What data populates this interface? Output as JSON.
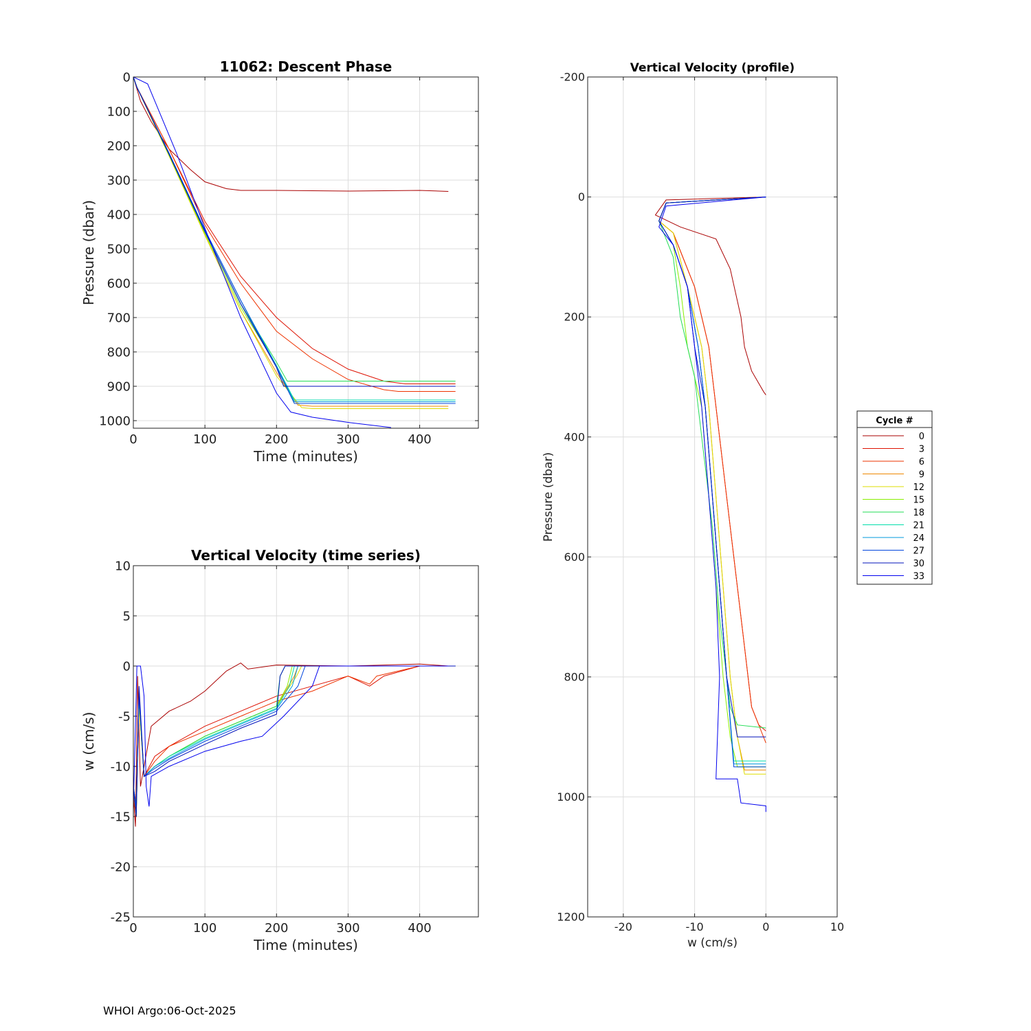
{
  "footer": "WHOI Argo:06-Oct-2025",
  "legend": {
    "title": "Cycle #",
    "entries": [
      "0",
      "3",
      "6",
      "9",
      "12",
      "15",
      "18",
      "21",
      "24",
      "27",
      "30",
      "33"
    ],
    "colors": [
      "#aa0000",
      "#dd1100",
      "#ee3300",
      "#ee8800",
      "#dddd00",
      "#88ee00",
      "#22dd55",
      "#00ddaa",
      "#0099dd",
      "#0044dd",
      "#0011bb",
      "#0000ee"
    ]
  },
  "chart_data": [
    {
      "id": "descent",
      "type": "line",
      "title": "11062: Descent Phase",
      "xlabel": "Time (minutes)",
      "ylabel": "Pressure (dbar)",
      "xlim": [
        0,
        482
      ],
      "ylim": [
        1022,
        0
      ],
      "xticks": [
        0,
        100,
        200,
        300,
        400
      ],
      "yticks": [
        0,
        100,
        200,
        300,
        400,
        500,
        600,
        700,
        800,
        900,
        1000
      ],
      "grid": true,
      "series": [
        {
          "name": "0",
          "x": [
            0,
            10,
            25,
            50,
            80,
            100,
            130,
            150,
            200,
            300,
            400,
            440
          ],
          "y": [
            0,
            70,
            130,
            210,
            270,
            305,
            325,
            330,
            330,
            332,
            330,
            333
          ]
        },
        {
          "name": "3",
          "x": [
            0,
            5,
            50,
            100,
            150,
            200,
            250,
            300,
            350,
            380,
            450
          ],
          "y": [
            0,
            30,
            210,
            420,
            580,
            700,
            790,
            850,
            885,
            893,
            893
          ]
        },
        {
          "name": "6",
          "x": [
            0,
            5,
            50,
            100,
            150,
            200,
            250,
            300,
            350,
            370,
            450
          ],
          "y": [
            0,
            30,
            210,
            430,
            600,
            740,
            820,
            880,
            910,
            915,
            915
          ]
        },
        {
          "name": "9",
          "x": [
            0,
            5,
            50,
            100,
            150,
            200,
            230,
            250,
            440
          ],
          "y": [
            0,
            30,
            230,
            460,
            680,
            860,
            955,
            958,
            958
          ]
        },
        {
          "name": "12",
          "x": [
            0,
            5,
            50,
            100,
            150,
            200,
            235,
            250,
            440
          ],
          "y": [
            0,
            30,
            230,
            460,
            680,
            870,
            962,
            965,
            965
          ]
        },
        {
          "name": "15",
          "x": [
            0,
            5,
            50,
            100,
            150,
            200,
            225,
            450
          ],
          "y": [
            0,
            30,
            228,
            455,
            670,
            840,
            950,
            950
          ]
        },
        {
          "name": "18",
          "x": [
            0,
            5,
            50,
            100,
            150,
            200,
            215,
            450
          ],
          "y": [
            0,
            30,
            225,
            450,
            660,
            830,
            885,
            885
          ]
        },
        {
          "name": "21",
          "x": [
            0,
            5,
            50,
            100,
            150,
            200,
            225,
            450
          ],
          "y": [
            0,
            30,
            225,
            450,
            660,
            840,
            940,
            940
          ]
        },
        {
          "name": "24",
          "x": [
            0,
            5,
            50,
            100,
            150,
            200,
            225,
            450
          ],
          "y": [
            0,
            30,
            222,
            445,
            650,
            840,
            945,
            945
          ]
        },
        {
          "name": "27",
          "x": [
            0,
            5,
            50,
            100,
            150,
            200,
            225,
            450
          ],
          "y": [
            0,
            30,
            222,
            445,
            650,
            845,
            950,
            950
          ]
        },
        {
          "name": "30",
          "x": [
            0,
            5,
            50,
            100,
            150,
            200,
            210,
            450
          ],
          "y": [
            0,
            30,
            225,
            450,
            660,
            845,
            900,
            900
          ]
        },
        {
          "name": "33",
          "x": [
            0,
            20,
            60,
            100,
            150,
            200,
            220,
            250,
            300,
            360
          ],
          "y": [
            0,
            20,
            220,
            440,
            700,
            920,
            975,
            990,
            1005,
            1020
          ]
        }
      ]
    },
    {
      "id": "velocity-time",
      "type": "line",
      "title": "Vertical Velocity (time series)",
      "xlabel": "Time (minutes)",
      "ylabel": "w (cm/s)",
      "xlim": [
        0,
        482
      ],
      "ylim": [
        -25,
        10
      ],
      "xticks": [
        0,
        100,
        200,
        300,
        400
      ],
      "yticks": [
        10,
        5,
        0,
        -5,
        -10,
        -15,
        -20,
        -25
      ],
      "grid": true,
      "series": [
        {
          "name": "0",
          "x": [
            0,
            3,
            6,
            10,
            15,
            25,
            50,
            80,
            100,
            130,
            150,
            160,
            200,
            300,
            400,
            440
          ],
          "y": [
            -13,
            -16,
            -1,
            -12,
            -10,
            -6,
            -4.5,
            -3.5,
            -2.5,
            -0.5,
            0.3,
            -0.3,
            0.1,
            0,
            0.2,
            0
          ]
        },
        {
          "name": "3",
          "x": [
            0,
            4,
            8,
            15,
            30,
            50,
            100,
            150,
            200,
            250,
            300,
            330,
            350,
            400,
            450
          ],
          "y": [
            -13,
            -15,
            -3,
            -11,
            -9,
            -8,
            -6,
            -4.5,
            -3,
            -2,
            -1,
            -2,
            -1,
            0,
            0
          ]
        },
        {
          "name": "6",
          "x": [
            0,
            4,
            8,
            15,
            30,
            50,
            100,
            150,
            200,
            250,
            300,
            330,
            340,
            400,
            450
          ],
          "y": [
            -13,
            -15,
            -3,
            -11,
            -9.5,
            -8,
            -6.5,
            -5,
            -3.5,
            -2.5,
            -1,
            -1.8,
            -1,
            0,
            0
          ]
        },
        {
          "name": "9",
          "x": [
            0,
            4,
            8,
            15,
            30,
            50,
            100,
            150,
            200,
            225,
            230,
            440
          ],
          "y": [
            -12,
            -14,
            -4,
            -11,
            -10,
            -9,
            -7,
            -5.5,
            -4,
            -1,
            0,
            0
          ]
        },
        {
          "name": "12",
          "x": [
            0,
            4,
            8,
            15,
            30,
            50,
            100,
            150,
            200,
            228,
            235,
            440
          ],
          "y": [
            -12,
            -14,
            -4,
            -11,
            -10,
            -9,
            -7,
            -5.5,
            -4,
            -1,
            0,
            0
          ]
        },
        {
          "name": "15",
          "x": [
            0,
            4,
            8,
            15,
            30,
            50,
            100,
            150,
            200,
            215,
            222,
            450
          ],
          "y": [
            -12,
            -15,
            -3,
            -11,
            -10,
            -9,
            -7,
            -5.5,
            -4,
            -2,
            0,
            0
          ]
        },
        {
          "name": "18",
          "x": [
            0,
            4,
            8,
            15,
            30,
            50,
            100,
            150,
            200,
            205,
            212,
            450
          ],
          "y": [
            -12,
            -15,
            -3,
            -11,
            -10,
            -9,
            -7,
            -5.5,
            -4,
            -1,
            0,
            0
          ]
        },
        {
          "name": "21",
          "x": [
            0,
            4,
            8,
            15,
            30,
            50,
            100,
            150,
            200,
            218,
            225,
            450
          ],
          "y": [
            -12,
            -14,
            -3,
            -11,
            -10,
            -9,
            -7.2,
            -5.7,
            -4.2,
            -2,
            0,
            0
          ]
        },
        {
          "name": "24",
          "x": [
            0,
            4,
            8,
            15,
            30,
            50,
            100,
            150,
            200,
            222,
            230,
            450
          ],
          "y": [
            -12,
            -14,
            -3,
            -11,
            -10,
            -9.2,
            -7.3,
            -5.8,
            -4.3,
            -2,
            0,
            0
          ]
        },
        {
          "name": "27",
          "x": [
            0,
            4,
            8,
            15,
            30,
            50,
            100,
            150,
            200,
            230,
            240,
            450
          ],
          "y": [
            -12,
            -14,
            -3,
            -11,
            -10.2,
            -9.3,
            -7.5,
            -6,
            -4.5,
            -2,
            0,
            0
          ]
        },
        {
          "name": "30",
          "x": [
            0,
            4,
            8,
            15,
            30,
            50,
            100,
            150,
            200,
            205,
            212,
            450
          ],
          "y": [
            -12,
            -15,
            -2,
            -11,
            -10.5,
            -9.5,
            -7.8,
            -6.2,
            -4.8,
            -1,
            0,
            0
          ]
        },
        {
          "name": "33",
          "x": [
            0,
            5,
            10,
            15,
            18,
            22,
            25,
            50,
            100,
            150,
            180,
            210,
            250,
            260,
            300,
            440
          ],
          "y": [
            -14,
            0,
            0,
            -3,
            -12,
            -14,
            -11,
            -10,
            -8.5,
            -7.5,
            -7,
            -5,
            -2,
            0,
            0,
            0
          ]
        }
      ]
    },
    {
      "id": "velocity-profile",
      "type": "line",
      "title": "Vertical Velocity (profile)",
      "xlabel": "w (cm/s)",
      "ylabel": "Pressure (dbar)",
      "xlim": [
        -25,
        10
      ],
      "ylim": [
        1200,
        -200
      ],
      "xticks": [
        -20,
        -10,
        0,
        10
      ],
      "yticks": [
        -200,
        0,
        200,
        400,
        600,
        800,
        1000,
        1200
      ],
      "grid": true,
      "series": [
        {
          "name": "0",
          "x": [
            0,
            -14,
            -15.5,
            -12,
            -7,
            -5,
            -3.5,
            -3,
            -2,
            -0.3,
            0
          ],
          "y": [
            0,
            5,
            30,
            50,
            70,
            120,
            200,
            250,
            290,
            325,
            330
          ]
        },
        {
          "name": "3",
          "x": [
            0,
            -14,
            -15,
            -13,
            -10,
            -8,
            -7,
            -5.5,
            -4,
            -3,
            -2,
            -1,
            0
          ],
          "y": [
            0,
            10,
            40,
            60,
            150,
            250,
            350,
            500,
            650,
            750,
            850,
            880,
            890
          ]
        },
        {
          "name": "6",
          "x": [
            0,
            -14,
            -15,
            -13,
            -10,
            -8,
            -7,
            -5.5,
            -4,
            -3,
            -2,
            0
          ],
          "y": [
            0,
            10,
            40,
            60,
            150,
            250,
            350,
            500,
            650,
            750,
            850,
            910
          ]
        },
        {
          "name": "9",
          "x": [
            0,
            -14,
            -15,
            -13,
            -11,
            -9,
            -8,
            -7,
            -6,
            -5,
            -4,
            -3,
            0
          ],
          "y": [
            0,
            10,
            40,
            60,
            150,
            250,
            350,
            500,
            650,
            800,
            900,
            955,
            955
          ]
        },
        {
          "name": "12",
          "x": [
            0,
            -14,
            -15,
            -13,
            -11,
            -9,
            -8,
            -7,
            -6,
            -5,
            -4,
            -3,
            0
          ],
          "y": [
            0,
            10,
            40,
            60,
            150,
            250,
            350,
            500,
            650,
            800,
            900,
            962,
            962
          ]
        },
        {
          "name": "15",
          "x": [
            0,
            -14,
            -15,
            -13,
            -12,
            -11,
            -9,
            -8,
            -7,
            -6,
            -5,
            -4,
            0
          ],
          "y": [
            0,
            10,
            40,
            80,
            150,
            250,
            350,
            500,
            650,
            800,
            900,
            950,
            950
          ]
        },
        {
          "name": "18",
          "x": [
            0,
            -14,
            -15,
            -13,
            -12,
            -10,
            -9,
            -7.5,
            -6.5,
            -5,
            -4,
            0
          ],
          "y": [
            0,
            10,
            40,
            100,
            200,
            300,
            400,
            550,
            700,
            850,
            880,
            885
          ]
        },
        {
          "name": "21",
          "x": [
            0,
            -14,
            -15,
            -13,
            -11,
            -9.5,
            -8.5,
            -7.5,
            -6.5,
            -5.5,
            -4.5,
            0
          ],
          "y": [
            0,
            10,
            40,
            80,
            150,
            250,
            350,
            500,
            650,
            800,
            940,
            940
          ]
        },
        {
          "name": "24",
          "x": [
            0,
            -14,
            -15,
            -13,
            -11,
            -9.5,
            -8.5,
            -7.5,
            -6.5,
            -5.5,
            -4.5,
            0
          ],
          "y": [
            0,
            10,
            40,
            80,
            150,
            250,
            350,
            500,
            650,
            800,
            945,
            945
          ]
        },
        {
          "name": "27",
          "x": [
            0,
            -14,
            -15,
            -13,
            -11,
            -9.5,
            -8.5,
            -7.5,
            -6.5,
            -5.5,
            -4.5,
            0
          ],
          "y": [
            0,
            10,
            40,
            80,
            150,
            250,
            350,
            500,
            650,
            800,
            950,
            950
          ]
        },
        {
          "name": "30",
          "x": [
            0,
            -14,
            -15,
            -13,
            -11,
            -10,
            -8.5,
            -7.5,
            -6.5,
            -5.5,
            -4,
            0
          ],
          "y": [
            0,
            10,
            40,
            80,
            150,
            250,
            350,
            500,
            650,
            800,
            900,
            900
          ]
        },
        {
          "name": "33",
          "x": [
            0,
            -14,
            -15,
            -13,
            -11,
            -10,
            -9,
            -8,
            -7,
            -6.5,
            -7,
            -4,
            -3.5,
            0,
            0
          ],
          "y": [
            0,
            15,
            50,
            80,
            150,
            250,
            350,
            500,
            650,
            800,
            970,
            970,
            1010,
            1015,
            1025
          ]
        }
      ]
    }
  ]
}
